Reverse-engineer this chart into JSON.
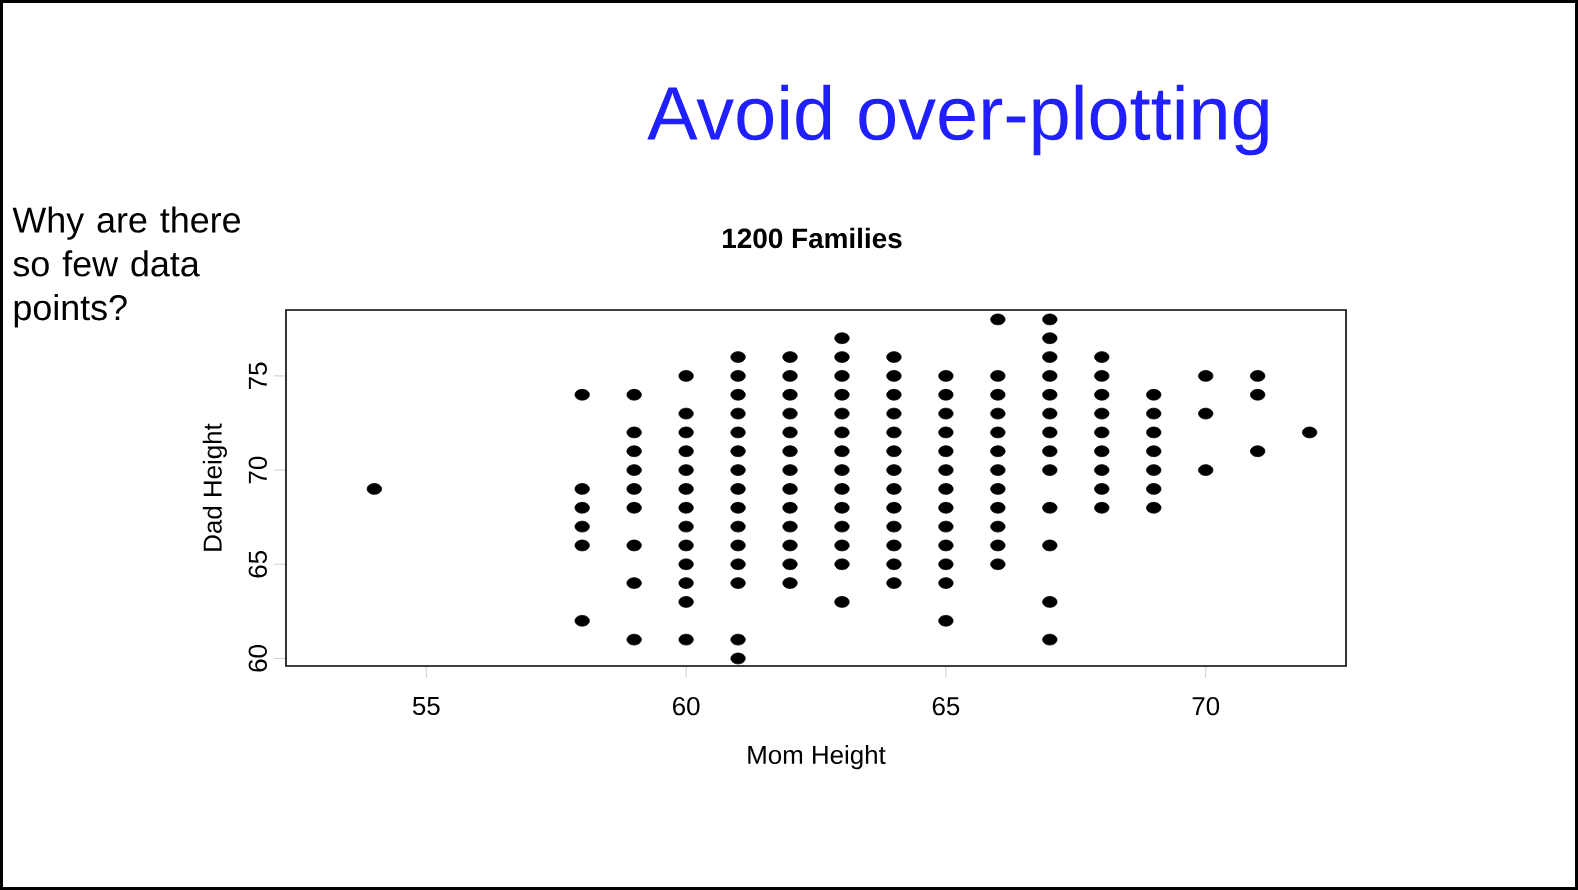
{
  "chart_data": {
    "type": "scatter",
    "title": "Avoid over-plotting",
    "subtitle": "1200 Families",
    "xlabel": "Mom Height",
    "ylabel": "Dad Height",
    "annotations": [
      "Why are there so few data points?"
    ],
    "color": "#000000",
    "marker": "circle",
    "xlim": [
      52.3,
      72.7
    ],
    "ylim": [
      59.6,
      78.5
    ],
    "xticks": [
      55,
      60,
      65,
      70
    ],
    "yticks": [
      60,
      65,
      70,
      75
    ],
    "x": [
      54,
      58,
      58,
      58,
      58,
      58,
      58,
      59,
      59,
      59,
      59,
      59,
      59,
      59,
      59,
      59,
      60,
      60,
      60,
      60,
      60,
      60,
      60,
      60,
      60,
      60,
      60,
      60,
      60,
      61,
      61,
      61,
      61,
      61,
      61,
      61,
      61,
      61,
      61,
      61,
      61,
      61,
      61,
      61,
      62,
      62,
      62,
      62,
      62,
      62,
      62,
      62,
      62,
      62,
      62,
      62,
      62,
      63,
      63,
      63,
      63,
      63,
      63,
      63,
      63,
      63,
      63,
      63,
      63,
      63,
      63,
      64,
      64,
      64,
      64,
      64,
      64,
      64,
      64,
      64,
      64,
      64,
      64,
      64,
      65,
      65,
      65,
      65,
      65,
      65,
      65,
      65,
      65,
      65,
      65,
      65,
      65,
      66,
      66,
      66,
      66,
      66,
      66,
      66,
      66,
      66,
      66,
      66,
      66,
      67,
      67,
      67,
      67,
      67,
      67,
      67,
      67,
      67,
      67,
      67,
      67,
      67,
      68,
      68,
      68,
      68,
      68,
      68,
      68,
      68,
      68,
      69,
      69,
      69,
      69,
      69,
      69,
      69,
      70,
      70,
      70,
      71,
      71,
      71,
      72
    ],
    "values": [
      69,
      74,
      69,
      68,
      67,
      66,
      62,
      74,
      72,
      71,
      70,
      69,
      68,
      66,
      64,
      61,
      75,
      73,
      72,
      71,
      70,
      69,
      68,
      67,
      66,
      65,
      64,
      63,
      61,
      76,
      75,
      74,
      73,
      72,
      71,
      70,
      69,
      68,
      67,
      66,
      65,
      64,
      61,
      60,
      76,
      75,
      74,
      73,
      72,
      71,
      70,
      69,
      68,
      67,
      66,
      65,
      64,
      77,
      76,
      75,
      74,
      73,
      72,
      71,
      70,
      69,
      68,
      67,
      66,
      65,
      63,
      76,
      75,
      74,
      73,
      72,
      71,
      70,
      69,
      68,
      67,
      66,
      65,
      64,
      75,
      74,
      73,
      72,
      71,
      70,
      69,
      68,
      67,
      66,
      65,
      64,
      62,
      78,
      75,
      74,
      73,
      72,
      71,
      70,
      69,
      68,
      67,
      66,
      65,
      78,
      77,
      76,
      75,
      74,
      73,
      72,
      71,
      70,
      68,
      66,
      63,
      61,
      76,
      75,
      74,
      73,
      72,
      71,
      70,
      69,
      68,
      74,
      73,
      72,
      71,
      70,
      69,
      68,
      75,
      73,
      70,
      75,
      74,
      71,
      72
    ]
  }
}
